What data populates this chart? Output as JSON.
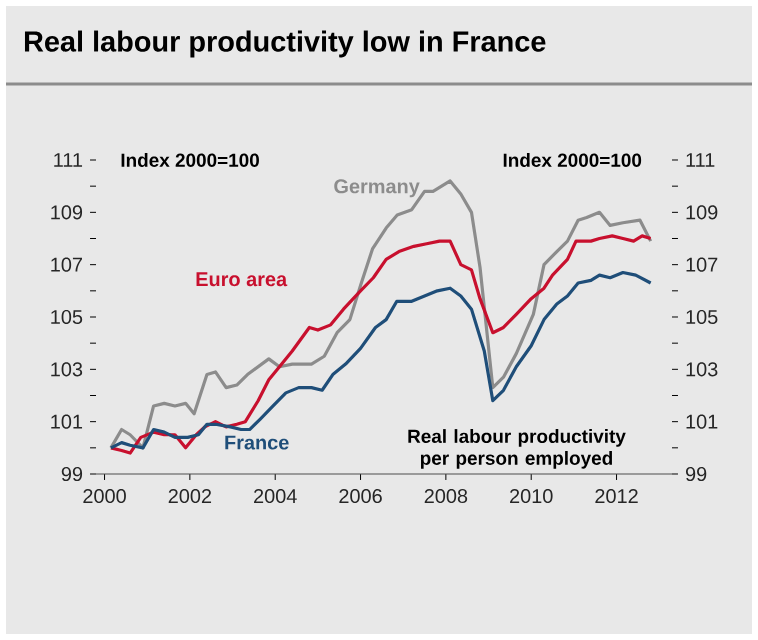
{
  "chart_data": {
    "type": "line",
    "title": "Real labour productivity low in France",
    "annotations": [
      "Index 2000=100",
      "Index 2000=100",
      "Real labour productivity per person employed"
    ],
    "marker": "none",
    "line_style": "solid",
    "xlim": [
      1999.8,
      2013.3
    ],
    "xticks": [
      2000,
      2002,
      2004,
      2006,
      2008,
      2010,
      2012
    ],
    "ylim": [
      99,
      111
    ],
    "yticks": [
      99,
      {
        "value": 100,
        "label": null
      },
      101,
      {
        "value": 102,
        "label": null
      },
      103,
      {
        "value": 104,
        "label": null
      },
      105,
      {
        "value": 106,
        "label": null
      },
      107,
      {
        "value": 108,
        "label": null
      },
      109,
      {
        "value": 110,
        "label": null
      },
      111
    ],
    "y2lim": [
      99,
      111
    ],
    "y2ticks": [
      99,
      {
        "value": 100,
        "label": null
      },
      101,
      {
        "value": 102,
        "label": null
      },
      103,
      {
        "value": 104,
        "label": null
      },
      105,
      {
        "value": 106,
        "label": null
      },
      107,
      {
        "value": 108,
        "label": null
      },
      109,
      {
        "value": 110,
        "label": null
      },
      111
    ],
    "series": [
      {
        "name": "Germany",
        "color": "#8c8c8c",
        "x": [
          2000.15,
          2000.4,
          2000.6,
          2000.9,
          2001.15,
          2001.4,
          2001.65,
          2001.9,
          2002.1,
          2002.4,
          2002.6,
          2002.85,
          2003.1,
          2003.35,
          2003.85,
          2004.1,
          2004.4,
          2004.85,
          2005.15,
          2005.45,
          2005.75,
          2006.0,
          2006.28,
          2006.6,
          2006.86,
          2007.2,
          2007.5,
          2007.7,
          2008.1,
          2008.35,
          2008.6,
          2008.8,
          2009.1,
          2009.35,
          2009.65,
          2010.05,
          2010.3,
          2010.6,
          2010.85,
          2011.1,
          2011.3,
          2011.6,
          2011.85,
          2012.15,
          2012.55,
          2012.8
        ],
        "values": [
          100.0,
          100.7,
          100.5,
          100.0,
          101.6,
          101.7,
          101.6,
          101.7,
          101.3,
          102.8,
          102.9,
          102.3,
          102.4,
          102.8,
          103.4,
          103.1,
          103.2,
          103.2,
          103.5,
          104.4,
          104.9,
          106.2,
          107.6,
          108.4,
          108.9,
          109.1,
          109.8,
          109.8,
          110.2,
          109.7,
          109.0,
          106.9,
          102.3,
          102.7,
          103.6,
          105.1,
          107.0,
          107.5,
          107.9,
          108.7,
          108.8,
          109.0,
          108.5,
          108.6,
          108.7,
          107.9
        ]
      },
      {
        "name": "Euro area",
        "color": "#c8102e",
        "x": [
          2000.15,
          2000.4,
          2000.6,
          2000.85,
          2001.15,
          2001.4,
          2001.65,
          2001.9,
          2002.15,
          2002.35,
          2002.6,
          2002.85,
          2003.1,
          2003.3,
          2003.6,
          2003.85,
          2004.1,
          2004.4,
          2004.8,
          2005.0,
          2005.3,
          2005.6,
          2006.0,
          2006.3,
          2006.6,
          2006.9,
          2007.25,
          2007.55,
          2007.85,
          2008.1,
          2008.35,
          2008.6,
          2008.8,
          2009.1,
          2009.35,
          2009.65,
          2010.0,
          2010.3,
          2010.5,
          2010.85,
          2011.05,
          2011.4,
          2011.6,
          2011.9,
          2012.15,
          2012.4,
          2012.6,
          2012.8
        ],
        "values": [
          100.0,
          99.9,
          99.8,
          100.4,
          100.6,
          100.5,
          100.5,
          100.0,
          100.5,
          100.8,
          101.0,
          100.8,
          100.9,
          101.0,
          101.8,
          102.6,
          103.1,
          103.7,
          104.6,
          104.5,
          104.7,
          105.3,
          106.0,
          106.5,
          107.2,
          107.5,
          107.7,
          107.8,
          107.9,
          107.9,
          107.0,
          106.8,
          105.7,
          104.4,
          104.6,
          105.1,
          105.7,
          106.1,
          106.6,
          107.2,
          107.9,
          107.9,
          108.0,
          108.1,
          108.0,
          107.9,
          108.1,
          108.0
        ]
      },
      {
        "name": "France",
        "color": "#1f4e79",
        "x": [
          2000.15,
          2000.4,
          2000.6,
          2000.9,
          2001.15,
          2001.4,
          2001.65,
          2001.95,
          2002.2,
          2002.4,
          2002.6,
          2002.95,
          2003.2,
          2003.4,
          2003.65,
          2003.95,
          2004.25,
          2004.55,
          2004.85,
          2005.1,
          2005.35,
          2005.65,
          2006.0,
          2006.35,
          2006.6,
          2006.85,
          2007.2,
          2007.5,
          2007.8,
          2008.1,
          2008.35,
          2008.6,
          2008.9,
          2009.1,
          2009.35,
          2009.65,
          2010.0,
          2010.3,
          2010.6,
          2010.85,
          2011.1,
          2011.4,
          2011.6,
          2011.85,
          2012.15,
          2012.45,
          2012.8
        ],
        "values": [
          100.0,
          100.2,
          100.1,
          100.0,
          100.7,
          100.6,
          100.4,
          100.4,
          100.5,
          100.9,
          100.9,
          100.8,
          100.7,
          100.7,
          101.1,
          101.6,
          102.1,
          102.3,
          102.3,
          102.2,
          102.8,
          103.2,
          103.8,
          104.6,
          104.9,
          105.6,
          105.6,
          105.8,
          106.0,
          106.1,
          105.8,
          105.3,
          103.7,
          101.8,
          102.2,
          103.1,
          103.9,
          104.9,
          105.5,
          105.8,
          106.3,
          106.4,
          106.6,
          106.5,
          106.7,
          106.6,
          106.3
        ]
      }
    ]
  }
}
